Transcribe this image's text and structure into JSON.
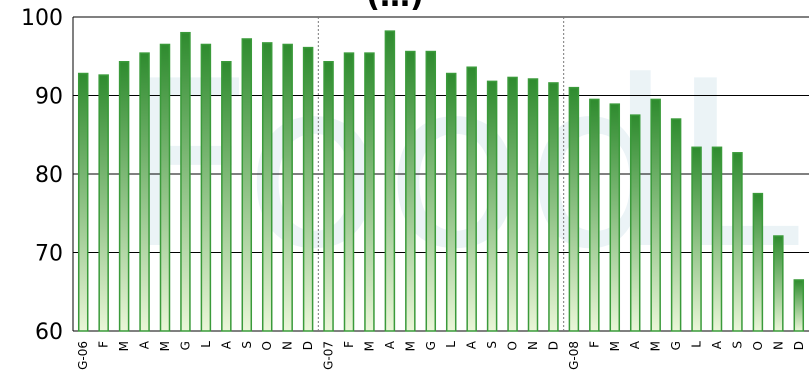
{
  "chart_data": {
    "type": "bar",
    "title": "(…)",
    "watermark": "FoodLab",
    "categories": [
      "G-06",
      "F",
      "M",
      "A",
      "M",
      "G",
      "L",
      "A",
      "S",
      "O",
      "N",
      "D",
      "G-07",
      "F",
      "M",
      "A",
      "M",
      "G",
      "L",
      "A",
      "S",
      "O",
      "N",
      "D",
      "G-08",
      "F",
      "M",
      "A",
      "M",
      "G",
      "L",
      "A",
      "S",
      "O",
      "N",
      "D"
    ],
    "values": [
      92.8,
      92.6,
      94.3,
      95.4,
      96.5,
      98.0,
      96.5,
      94.3,
      97.2,
      96.7,
      96.5,
      96.1,
      94.3,
      95.4,
      95.4,
      98.2,
      95.6,
      95.6,
      92.8,
      93.6,
      91.8,
      92.3,
      92.1,
      91.6,
      91.0,
      89.5,
      88.9,
      87.5,
      89.5,
      87.0,
      83.4,
      83.4,
      82.7,
      77.5,
      72.1,
      66.5
    ],
    "ylim": [
      60,
      100
    ],
    "yticks": [
      60,
      70,
      80,
      90,
      100
    ],
    "ytick_labels": [
      "60",
      "70",
      "80",
      "90",
      "100"
    ],
    "grid": true,
    "colors": {
      "bar_top": "#2e8b2e",
      "bar_bottom": "#eaf6d8",
      "bar_stroke": "#3a9a3a",
      "grid": "#000000",
      "separator": "#7a7a7a"
    }
  }
}
